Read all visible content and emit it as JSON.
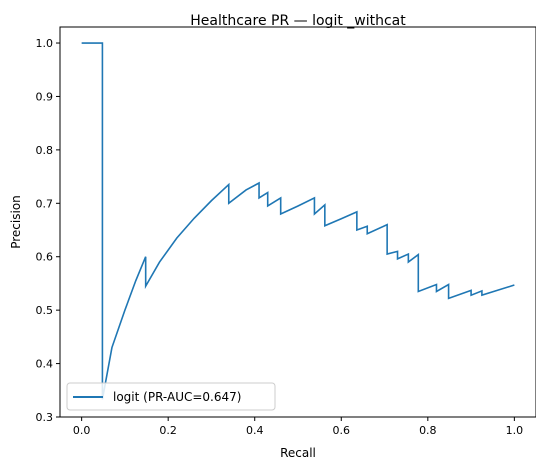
{
  "chart_data": {
    "type": "line",
    "title": "Healthcare PR — logit _withcat",
    "xlabel": "Recall",
    "ylabel": "Precision",
    "xlim": [
      -0.05,
      1.05
    ],
    "ylim": [
      0.3,
      1.03
    ],
    "xticks": [
      0.0,
      0.2,
      0.4,
      0.6,
      0.8,
      1.0
    ],
    "xtick_labels": [
      "0.0",
      "0.2",
      "0.4",
      "0.6",
      "0.8",
      "1.0"
    ],
    "yticks": [
      0.3,
      0.4,
      0.5,
      0.6,
      0.7,
      0.8,
      0.9,
      1.0
    ],
    "ytick_labels": [
      "0.3",
      "0.4",
      "0.5",
      "0.6",
      "0.7",
      "0.8",
      "0.9",
      "1.0"
    ],
    "grid": false,
    "legend_position": "lower left",
    "series": [
      {
        "name": "logit (PR-AUC=0.647)",
        "color": "#1f77b4",
        "x": [
          0.0,
          0.048,
          0.048,
          0.07,
          0.1,
          0.125,
          0.148,
          0.148,
          0.18,
          0.22,
          0.26,
          0.3,
          0.34,
          0.34,
          0.38,
          0.41,
          0.41,
          0.43,
          0.43,
          0.46,
          0.46,
          0.5,
          0.538,
          0.538,
          0.562,
          0.562,
          0.6,
          0.636,
          0.636,
          0.66,
          0.66,
          0.706,
          0.706,
          0.73,
          0.73,
          0.755,
          0.755,
          0.778,
          0.778,
          0.82,
          0.82,
          0.848,
          0.848,
          0.9,
          0.9,
          0.925,
          0.925,
          1.0
        ],
        "y": [
          1.0,
          1.0,
          0.333,
          0.43,
          0.5,
          0.555,
          0.6,
          0.545,
          0.59,
          0.635,
          0.672,
          0.705,
          0.735,
          0.7,
          0.725,
          0.738,
          0.71,
          0.72,
          0.695,
          0.71,
          0.68,
          0.695,
          0.71,
          0.68,
          0.697,
          0.658,
          0.671,
          0.684,
          0.65,
          0.657,
          0.643,
          0.66,
          0.605,
          0.61,
          0.596,
          0.605,
          0.59,
          0.604,
          0.535,
          0.548,
          0.535,
          0.548,
          0.522,
          0.537,
          0.528,
          0.536,
          0.528,
          0.547
        ]
      }
    ]
  }
}
